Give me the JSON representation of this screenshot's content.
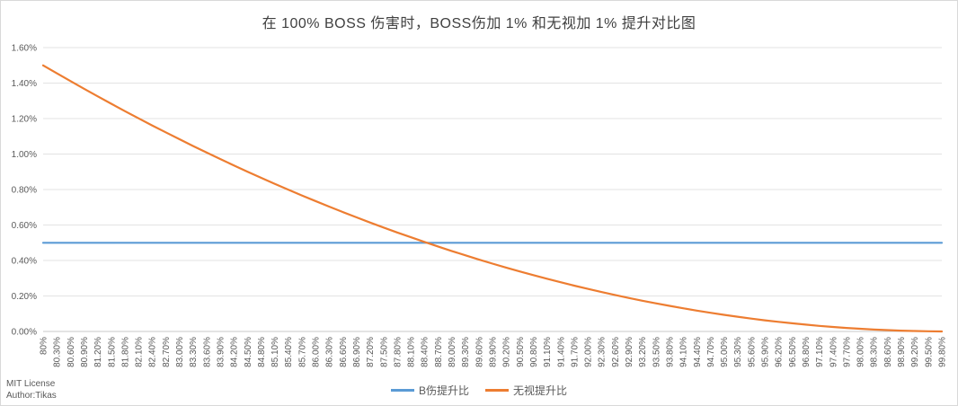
{
  "chart_data": {
    "type": "line",
    "title": "在 100% BOSS 伤害时，BOSS伤加 1% 和无视加 1% 提升对比图",
    "categories": [
      "80%",
      "80.30%",
      "80.60%",
      "80.90%",
      "81.20%",
      "81.50%",
      "81.80%",
      "82.10%",
      "82.40%",
      "82.70%",
      "83.00%",
      "83.30%",
      "83.60%",
      "83.90%",
      "84.20%",
      "84.50%",
      "84.80%",
      "85.10%",
      "85.40%",
      "85.70%",
      "86.00%",
      "86.30%",
      "86.60%",
      "86.90%",
      "87.20%",
      "87.50%",
      "87.80%",
      "88.10%",
      "88.40%",
      "88.70%",
      "89.00%",
      "89.30%",
      "89.60%",
      "89.90%",
      "90.20%",
      "90.50%",
      "90.80%",
      "91.10%",
      "91.40%",
      "91.70%",
      "92.00%",
      "92.30%",
      "92.60%",
      "92.90%",
      "93.20%",
      "93.50%",
      "93.80%",
      "94.10%",
      "94.40%",
      "94.70%",
      "95.00%",
      "95.30%",
      "95.60%",
      "95.90%",
      "96.20%",
      "96.50%",
      "96.80%",
      "97.10%",
      "97.40%",
      "97.70%",
      "98.00%",
      "98.30%",
      "98.60%",
      "98.90%",
      "99.20%",
      "99.50%",
      "99.80%"
    ],
    "series": [
      {
        "name": "B伤提升比",
        "color": "#5B9BD5",
        "values": [
          0.5,
          0.5,
          0.5,
          0.5,
          0.5,
          0.5,
          0.5,
          0.5,
          0.5,
          0.5,
          0.5,
          0.5,
          0.5,
          0.5,
          0.5,
          0.5,
          0.5,
          0.5,
          0.5,
          0.5,
          0.5,
          0.5,
          0.5,
          0.5,
          0.5,
          0.5,
          0.5,
          0.5,
          0.5,
          0.5,
          0.5,
          0.5,
          0.5,
          0.5,
          0.5,
          0.5,
          0.5,
          0.5,
          0.5,
          0.5,
          0.5,
          0.5,
          0.5,
          0.5,
          0.5,
          0.5,
          0.5,
          0.5,
          0.5,
          0.5,
          0.5,
          0.5,
          0.5,
          0.5,
          0.5,
          0.5,
          0.5,
          0.5,
          0.5,
          0.5,
          0.5,
          0.5,
          0.5,
          0.5,
          0.5,
          0.5,
          0.5
        ]
      },
      {
        "name": "无视提升比",
        "color": "#ED7D31",
        "values": [
          1.5,
          1.4553,
          1.4114,
          1.368,
          1.3254,
          1.2834,
          1.2422,
          1.2015,
          1.1616,
          1.1223,
          1.0838,
          1.0458,
          1.0086,
          0.972,
          0.9362,
          0.9009,
          0.8664,
          0.8325,
          0.7994,
          0.7668,
          0.735,
          0.7038,
          0.6734,
          0.6435,
          0.6144,
          0.5859,
          0.5582,
          0.531,
          0.5046,
          0.4788,
          0.4538,
          0.4293,
          0.4056,
          0.3825,
          0.3602,
          0.3384,
          0.3174,
          0.297,
          0.2774,
          0.2583,
          0.24,
          0.2223,
          0.2054,
          0.189,
          0.1734,
          0.1584,
          0.1442,
          0.1305,
          0.1176,
          0.1053,
          0.0938,
          0.0828,
          0.0726,
          0.063,
          0.0542,
          0.0459,
          0.0384,
          0.0315,
          0.0254,
          0.0198,
          0.015,
          0.0108,
          0.0074,
          0.0045,
          0.0024,
          0.0009,
          0.0002
        ]
      }
    ],
    "y_axis": {
      "min": 0,
      "max": 1.6,
      "step": 0.2,
      "tick_labels": [
        "0.00%",
        "0.20%",
        "0.40%",
        "0.60%",
        "0.80%",
        "1.00%",
        "1.20%",
        "1.40%",
        "1.60%"
      ],
      "unit": "%"
    },
    "x_label_rotation": 90,
    "grid": true,
    "legend_position": "bottom"
  },
  "footer": {
    "license": "MIT License",
    "author": "Author:Tikas"
  },
  "colors": {
    "background": "#FFFFFF",
    "border": "#D9D9D9",
    "title_text": "#404040",
    "axis_text": "#595959",
    "gridline": "#E3E3E3",
    "axis_line": "#C9C9C9",
    "series_blue": "#5B9BD5",
    "series_orange": "#ED7D31"
  }
}
